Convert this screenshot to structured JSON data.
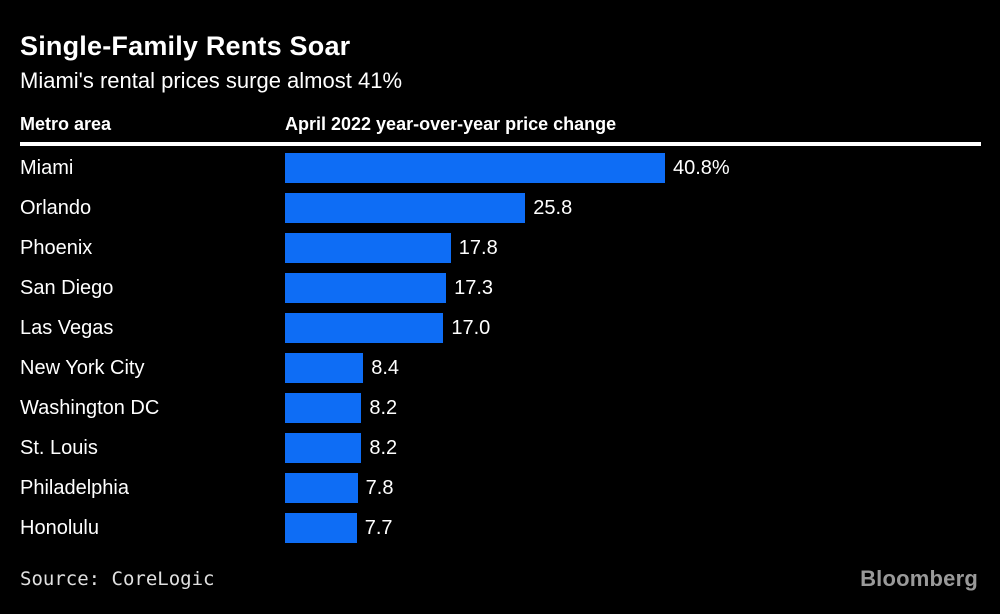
{
  "title": "Single-Family Rents Soar",
  "subtitle": "Miami's rental prices surge almost 41%",
  "columns": {
    "metro": "Metro area",
    "change": "April 2022 year-over-year price change"
  },
  "footer": {
    "source": "Source: CoreLogic",
    "brand": "Bloomberg"
  },
  "colors": {
    "background": "#000000",
    "bar": "#0e6df5",
    "text": "#ffffff",
    "rule": "#ffffff",
    "source_text": "#e0e0e0",
    "brand_gray": "#9a9a9a"
  },
  "chart_data": {
    "type": "bar",
    "orientation": "horizontal",
    "title": "Single-Family Rents Soar",
    "subtitle": "Miami's rental prices surge almost 41%",
    "xlabel": "April 2022 year-over-year price change",
    "ylabel": "Metro area",
    "categories": [
      "Miami",
      "Orlando",
      "Phoenix",
      "San Diego",
      "Las Vegas",
      "New York City",
      "Washington DC",
      "St. Louis",
      "Philadelphia",
      "Honolulu"
    ],
    "values": [
      40.8,
      25.8,
      17.8,
      17.3,
      17.0,
      8.4,
      8.2,
      8.2,
      7.8,
      7.7
    ],
    "value_labels": [
      "40.8%",
      "25.8",
      "17.8",
      "17.3",
      "17.0",
      "8.4",
      "8.2",
      "8.2",
      "7.8",
      "7.7"
    ],
    "xlim": [
      0,
      40.8
    ],
    "grid": false,
    "legend": false,
    "source": "CoreLogic"
  }
}
